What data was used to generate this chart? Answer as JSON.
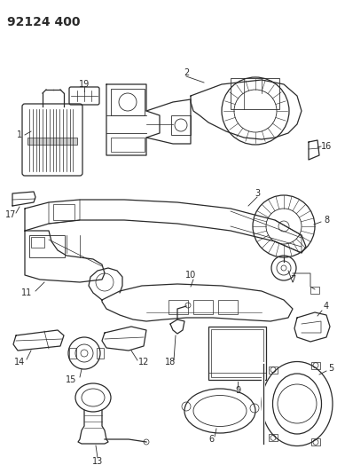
{
  "title": "92124 400",
  "bg_color": "#ffffff",
  "fig_width": 3.8,
  "fig_height": 5.33,
  "dpi": 100,
  "line_color": "#2a2a2a",
  "label_fontsize": 7.0,
  "title_fontsize": 10,
  "gray_fill": "#e8e8e8"
}
